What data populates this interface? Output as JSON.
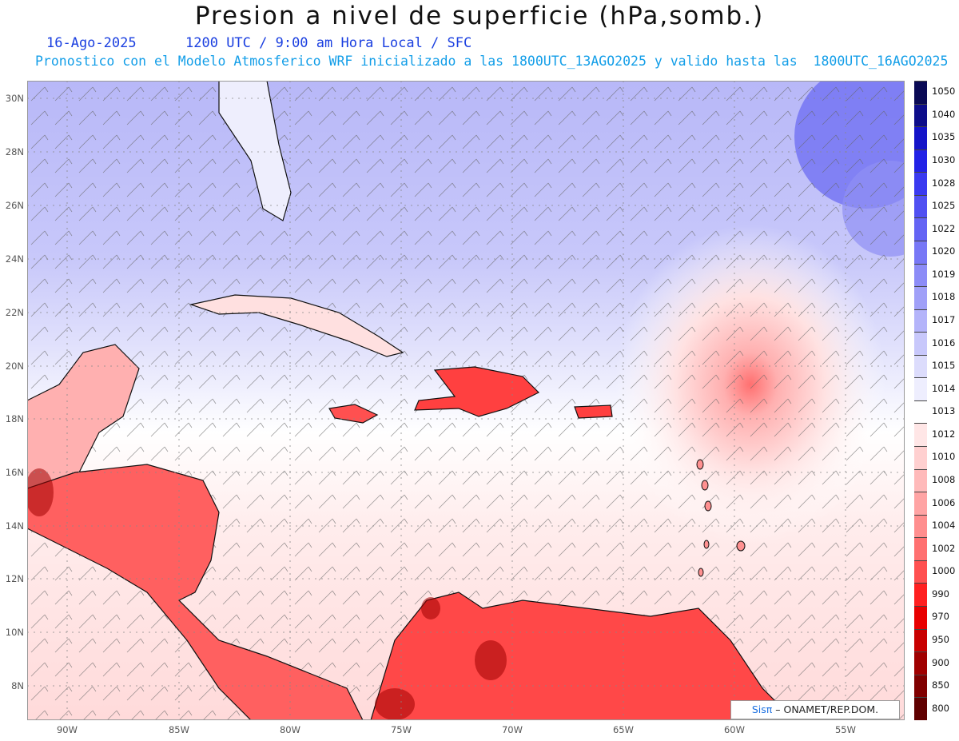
{
  "title": "Presion a nivel de superficie (hPa,somb.)",
  "subtitle_date": "16-Ago-2025",
  "subtitle_time": "1200 UTC / 9:00 am Hora Local / SFC",
  "subtitle_model": "Pronostico con el Modelo Atmosferico WRF inicializado a las 1800UTC_13AGO2025 y valido hasta las  1800UTC_16AGO2025",
  "lat_labels": [
    "30N",
    "28N",
    "26N",
    "24N",
    "22N",
    "20N",
    "18N",
    "16N",
    "14N",
    "12N",
    "10N",
    "8N"
  ],
  "lon_labels": [
    "90W",
    "85W",
    "80W",
    "75W",
    "70W",
    "65W",
    "60W",
    "55W"
  ],
  "colorbar": {
    "levels": [
      "1050",
      "1040",
      "1035",
      "1030",
      "1028",
      "1025",
      "1022",
      "1020",
      "1019",
      "1018",
      "1017",
      "1016",
      "1015",
      "1014",
      "1013",
      "1012",
      "1010",
      "1008",
      "1006",
      "1004",
      "1002",
      "1000",
      "990",
      "970",
      "950",
      "900",
      "850",
      "800"
    ],
    "colors": [
      "#0a0a55",
      "#0d0d8a",
      "#1414c8",
      "#2222e6",
      "#3a3af0",
      "#5050f2",
      "#6464f4",
      "#7878f6",
      "#8c8cf7",
      "#a0a0f8",
      "#b4b4fa",
      "#c8c8fb",
      "#dcdcfc",
      "#eeeefe",
      "#ffffff",
      "#ffe6e6",
      "#ffd0d0",
      "#ffbaba",
      "#ffa4a4",
      "#ff8e8e",
      "#ff7070",
      "#ff5050",
      "#ff2020",
      "#e80000",
      "#c80000",
      "#a00000",
      "#800000",
      "#600000"
    ]
  },
  "credit": {
    "sis": "Sisπ",
    "rest": " – ONAMET/REP.DOM."
  }
}
